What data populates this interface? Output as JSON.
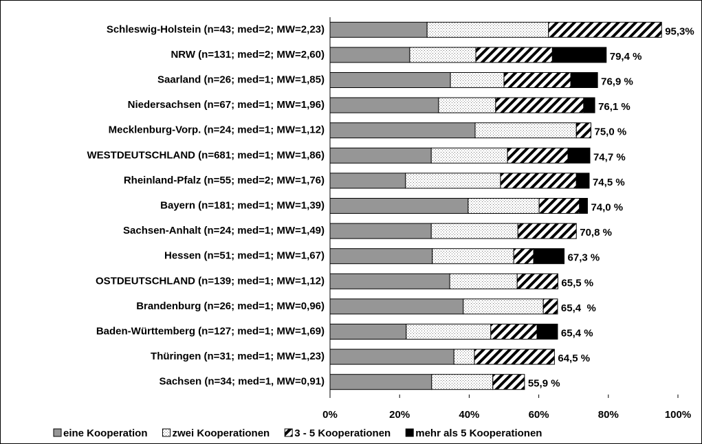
{
  "chart_data": {
    "type": "stacked-barh",
    "categories": [
      "Schleswig-Holstein (n=43; med=2; MW=2,23)",
      "NRW (n=131; med=2; MW=2,60)",
      "Saarland (n=26; med=1; MW=1,85)",
      "Niedersachsen (n=67; med=1; MW=1,96)",
      "Mecklenburg-Vorp. (n=24; med=1; MW=1,12)",
      "WESTDEUTSCHLAND (n=681; med=1; MW=1,86)",
      "Rheinland-Pfalz (n=55; med=2; MW=1,76)",
      "Bayern (n=181; med=1; MW=1,39)",
      "Sachsen-Anhalt (n=24; med=1; MW=1,49)",
      "Hessen (n=51; med=1; MW=1,67)",
      "OSTDEUTSCHLAND (n=139; med=1; MW=1,12)",
      "Brandenburg (n=26; med=1; MW=0,96)",
      "Baden-Württemberg (n=127; med=1; MW=1,69)",
      "Thüringen (n=31; med=1; MW=1,23)",
      "Sachsen (n=34; med=1, MW=0,91)"
    ],
    "series": [
      {
        "name": "eine Kooperation",
        "color": "#969696",
        "pattern": "solid",
        "values": [
          27.9,
          22.9,
          34.6,
          31.2,
          41.7,
          29.1,
          21.7,
          39.7,
          29.1,
          29.4,
          34.4,
          38.3,
          21.9,
          35.6,
          29.2
        ]
      },
      {
        "name": "zwei Kooperationen",
        "color": "#ffffff",
        "pattern": "dots",
        "values": [
          34.9,
          19.0,
          15.4,
          16.4,
          29.1,
          21.9,
          27.3,
          20.4,
          24.9,
          23.4,
          19.4,
          23.0,
          24.3,
          5.9,
          17.6
        ]
      },
      {
        "name": "3 - 5 Kooperationen",
        "color": "#ffffff",
        "pattern": "hatch",
        "values": [
          32.5,
          22.0,
          19.2,
          25.3,
          4.2,
          17.4,
          21.8,
          11.6,
          16.8,
          5.7,
          11.7,
          4.1,
          13.3,
          23.0,
          9.1
        ]
      },
      {
        "name": "mehr als 5 Kooperationen",
        "color": "#000000",
        "pattern": "solid",
        "values": [
          0,
          15.5,
          7.7,
          3.2,
          0,
          6.3,
          3.7,
          2.3,
          0,
          8.8,
          0,
          0,
          5.9,
          0,
          0
        ]
      }
    ],
    "totals": [
      95.3,
      79.4,
      76.9,
      76.1,
      75.0,
      74.7,
      74.5,
      74.0,
      70.8,
      67.3,
      65.5,
      65.4,
      65.4,
      64.5,
      55.9
    ],
    "total_labels": [
      "95,3%",
      "79,4 %",
      "76,9 %",
      "76,1 %",
      "75,0 %",
      "74,7 %",
      "74,5 %",
      "74,0 %",
      "70,8 %",
      "67,3 %",
      "65,5 %",
      "65,4  %",
      "65,4 %",
      "64,5 %",
      "55,9 %"
    ],
    "xlim": [
      0,
      100
    ],
    "xticks": [
      {
        "value": 0,
        "label": "0%"
      },
      {
        "value": 20,
        "label": "20%"
      },
      {
        "value": 40,
        "label": "40%"
      },
      {
        "value": 60,
        "label": "60%"
      },
      {
        "value": 80,
        "label": "80%"
      },
      {
        "value": 100,
        "label": "100%"
      }
    ],
    "grid": false,
    "legend": "bottom"
  }
}
